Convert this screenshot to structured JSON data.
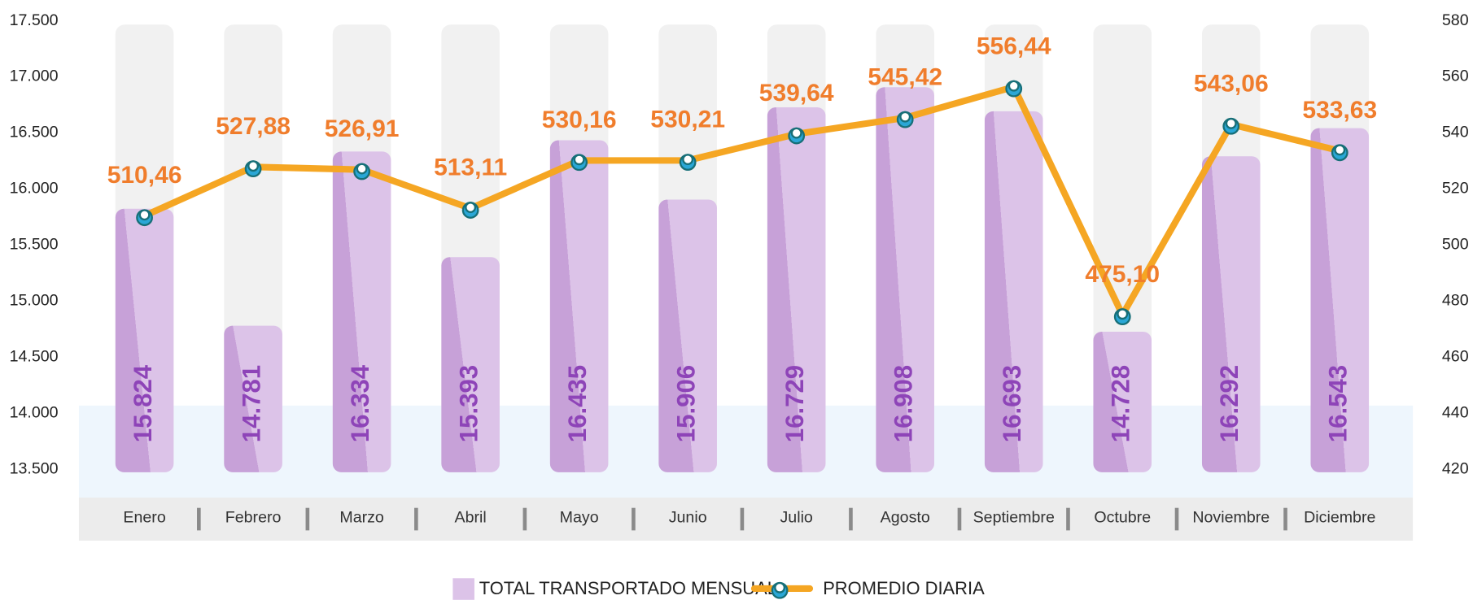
{
  "chart_data": {
    "type": "bar",
    "categories": [
      "Enero",
      "Febrero",
      "Marzo",
      "Abril",
      "Mayo",
      "Junio",
      "Julio",
      "Agosto",
      "Septiembre",
      "Octubre",
      "Noviembre",
      "Diciembre"
    ],
    "series": [
      {
        "name": "TOTAL TRANSPORTADO MENSUAL",
        "type": "bar",
        "color": "#dcc3e8",
        "values": [
          15824,
          14781,
          16334,
          15393,
          16435,
          15906,
          16729,
          16908,
          16693,
          14728,
          16292,
          16543
        ],
        "value_labels": [
          "15.824",
          "14.781",
          "16.334",
          "15.393",
          "16.435",
          "15.906",
          "16.729",
          "16.908",
          "16.693",
          "14.728",
          "16.292",
          "16.543"
        ]
      },
      {
        "name": "PROMEDIO DIARIA",
        "type": "line",
        "axis": "y2",
        "color": "#f5a623",
        "values": [
          510.46,
          527.88,
          526.91,
          513.11,
          530.16,
          530.21,
          539.64,
          545.42,
          556.44,
          475.1,
          543.06,
          533.63
        ],
        "value_labels": [
          "510,46",
          "527,88",
          "526,91",
          "513,11",
          "530,16",
          "530,21",
          "539,64",
          "545,42",
          "556,44",
          "475,10",
          "543,06",
          "533,63"
        ]
      }
    ],
    "ylim": [
      13500,
      17500
    ],
    "yticks": [
      {
        "value": 13500,
        "label": "13.500"
      },
      {
        "value": 14000,
        "label": "14.000"
      },
      {
        "value": 14500,
        "label": "14.500"
      },
      {
        "value": 15000,
        "label": "15.000"
      },
      {
        "value": 15500,
        "label": "15.500"
      },
      {
        "value": 16000,
        "label": "16.000"
      },
      {
        "value": 16500,
        "label": "16.500"
      },
      {
        "value": 17000,
        "label": "17.000"
      },
      {
        "value": 17500,
        "label": "17.500"
      }
    ],
    "y2lim": [
      420,
      580
    ],
    "y2ticks": [
      420,
      440,
      460,
      480,
      500,
      520,
      540,
      560,
      580
    ],
    "legend": "bottom"
  }
}
